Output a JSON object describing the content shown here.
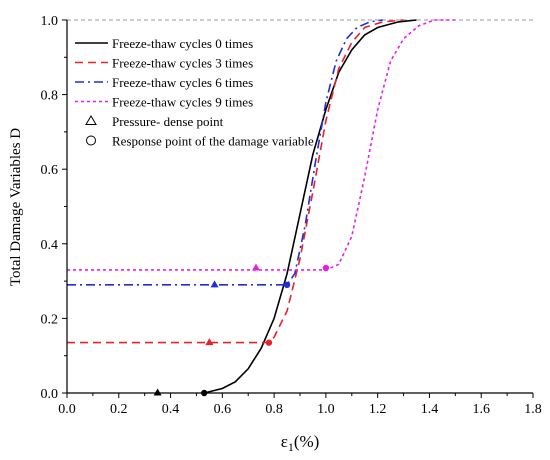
{
  "chart_data": {
    "type": "line",
    "title": "",
    "xlabel_main": "ε",
    "xlabel_sub": "1",
    "xlabel_unit": "(%)",
    "ylabel": "Total Damage Variables D",
    "xlim": [
      0,
      1.8
    ],
    "ylim": [
      0,
      1.0
    ],
    "xticks": [
      "0.0",
      "0.2",
      "0.4",
      "0.6",
      "0.8",
      "1.0",
      "1.2",
      "1.4",
      "1.6",
      "1.8"
    ],
    "yticks": [
      "0.0",
      "0.2",
      "0.4",
      "0.6",
      "0.8",
      "1.0"
    ],
    "grid": false,
    "legend_position": "top-left",
    "reference_line_y": 1.0,
    "series": [
      {
        "name": "Freeze-thaw cycles 0 times",
        "color": "#000000",
        "dash": "solid",
        "points": [
          [
            0.53,
            0
          ],
          [
            0.6,
            0.012
          ],
          [
            0.65,
            0.03
          ],
          [
            0.7,
            0.065
          ],
          [
            0.75,
            0.12
          ],
          [
            0.8,
            0.2
          ],
          [
            0.85,
            0.32
          ],
          [
            0.9,
            0.48
          ],
          [
            0.95,
            0.64
          ],
          [
            1.0,
            0.76
          ],
          [
            1.05,
            0.86
          ],
          [
            1.1,
            0.92
          ],
          [
            1.15,
            0.96
          ],
          [
            1.2,
            0.98
          ],
          [
            1.28,
            0.995
          ],
          [
            1.35,
            1.0
          ]
        ],
        "pressure_dense_point": [
          0.35,
          0.0
        ],
        "response_point": [
          0.53,
          0.0
        ]
      },
      {
        "name": "Freeze-thaw cycles 3 times",
        "color": "#e8222a",
        "dash": "long-dash",
        "points": [
          [
            0,
            0.135
          ],
          [
            0.78,
            0.135
          ],
          [
            0.8,
            0.15
          ],
          [
            0.85,
            0.22
          ],
          [
            0.9,
            0.36
          ],
          [
            0.95,
            0.54
          ],
          [
            1.0,
            0.73
          ],
          [
            1.05,
            0.87
          ],
          [
            1.1,
            0.94
          ],
          [
            1.15,
            0.98
          ],
          [
            1.22,
            0.995
          ],
          [
            1.3,
            1.0
          ]
        ],
        "pressure_dense_point": [
          0.55,
          0.135
        ],
        "response_point": [
          0.78,
          0.135
        ]
      },
      {
        "name": "Freeze-thaw cycles 6 times",
        "color": "#1f2ed6",
        "dash": "dash-dot",
        "points": [
          [
            0,
            0.29
          ],
          [
            0.85,
            0.29
          ],
          [
            0.88,
            0.32
          ],
          [
            0.92,
            0.45
          ],
          [
            0.96,
            0.62
          ],
          [
            1.0,
            0.78
          ],
          [
            1.04,
            0.89
          ],
          [
            1.08,
            0.95
          ],
          [
            1.12,
            0.98
          ],
          [
            1.17,
            0.995
          ],
          [
            1.22,
            1.0
          ]
        ],
        "pressure_dense_point": [
          0.57,
          0.29
        ],
        "response_point": [
          0.85,
          0.29
        ]
      },
      {
        "name": "Freeze-thaw cycles 9 times",
        "color": "#e81ee8",
        "dash": "short-dash",
        "points": [
          [
            0,
            0.33
          ],
          [
            1.0,
            0.33
          ],
          [
            1.05,
            0.345
          ],
          [
            1.1,
            0.42
          ],
          [
            1.15,
            0.58
          ],
          [
            1.2,
            0.76
          ],
          [
            1.25,
            0.89
          ],
          [
            1.3,
            0.95
          ],
          [
            1.36,
            0.985
          ],
          [
            1.42,
            1.0
          ],
          [
            1.5,
            1.0
          ]
        ],
        "pressure_dense_point": [
          0.73,
          0.335
        ],
        "response_point": [
          1.0,
          0.335
        ]
      }
    ],
    "marker_legend": [
      {
        "name": "Pressure- dense point",
        "symbol": "triangle"
      },
      {
        "name": "Response point of the damage variable",
        "symbol": "circle"
      }
    ]
  }
}
